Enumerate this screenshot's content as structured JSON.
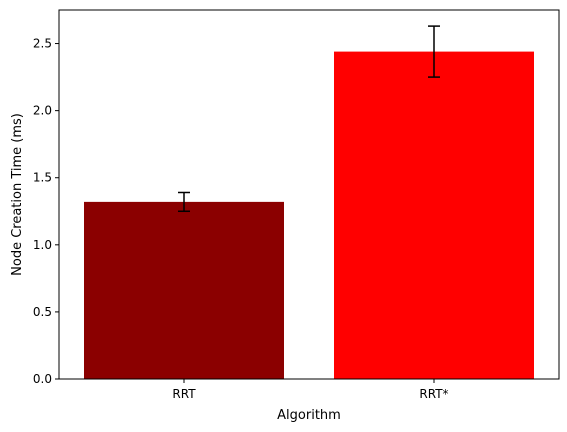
{
  "chart_data": {
    "type": "bar",
    "title": "",
    "xlabel": "Algorithm",
    "ylabel": "Node Creation Time (ms)",
    "categories": [
      "RRT",
      "RRT*"
    ],
    "values": [
      1.32,
      2.44
    ],
    "error_low": [
      1.25,
      2.25
    ],
    "error_high": [
      1.39,
      2.63
    ],
    "bar_colors": [
      "#8b0000",
      "#ff0000"
    ],
    "ylim": [
      0,
      2.75
    ],
    "yticks": [
      0.0,
      0.5,
      1.0,
      1.5,
      2.0,
      2.5
    ],
    "ytick_labels": [
      "0.0",
      "0.5",
      "1.0",
      "1.5",
      "2.0",
      "2.5"
    ],
    "grid": false,
    "legend": "none"
  }
}
